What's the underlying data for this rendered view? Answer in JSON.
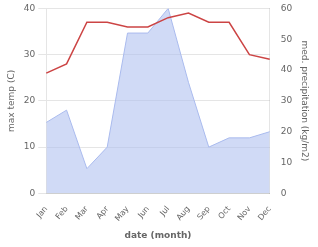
{
  "chart_data": {
    "type": "line",
    "xlabel": "date (month)",
    "ylabel": "max temp (C)",
    "y2label": "med. precipitation (kg/m2)",
    "categories": [
      "Jan",
      "Feb",
      "Mar",
      "Apr",
      "May",
      "Jun",
      "Jul",
      "Aug",
      "Sep",
      "Oct",
      "Nov",
      "Dec"
    ],
    "series": [
      {
        "type": "area",
        "axis": "y2",
        "color": "#aabbee",
        "values": [
          23,
          27,
          8,
          15,
          52,
          52,
          60,
          36,
          15,
          18,
          18,
          20
        ]
      },
      {
        "type": "line",
        "color": "#cc4444",
        "values": [
          26,
          28,
          37,
          37,
          36,
          36,
          38,
          39,
          37,
          37,
          30,
          29
        ]
      }
    ],
    "ylim": [
      0,
      40
    ],
    "yticks": [
      0,
      10,
      20,
      30,
      40
    ],
    "y2lim": [
      0,
      60
    ],
    "y2ticks": [
      0,
      10,
      20,
      30,
      40,
      50,
      60
    ],
    "grid": true
  }
}
